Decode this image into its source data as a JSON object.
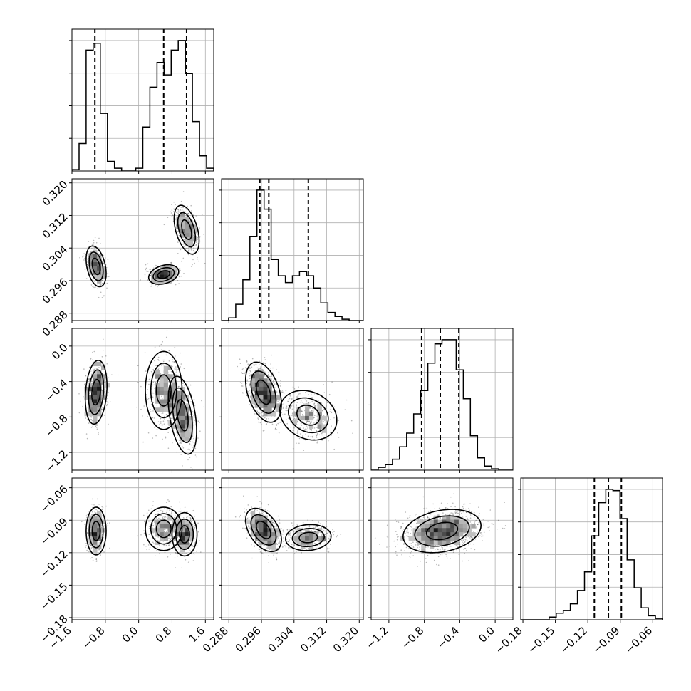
{
  "chart_data": {
    "type": "corner",
    "parameters": [
      {
        "ticks": [
          "−1.6",
          "−0.8",
          "0.0",
          "0.8",
          "1.6"
        ],
        "tick_values": [
          -1.6,
          -0.8,
          0.0,
          0.8,
          1.6
        ],
        "range": [
          -1.6,
          1.8
        ],
        "quantiles": [
          -1.05,
          0.6,
          1.15
        ]
      },
      {
        "ticks": [
          "0.288",
          "0.296",
          "0.304",
          "0.312",
          "0.320"
        ],
        "tick_values": [
          0.288,
          0.296,
          0.304,
          0.312,
          0.32
        ],
        "range": [
          0.2862,
          0.321
        ],
        "quantiles": [
          0.2956,
          0.2978,
          0.3075
        ]
      },
      {
        "ticks": [
          "−1.2",
          "−0.8",
          "−0.4",
          "0.0"
        ],
        "tick_values": [
          -1.2,
          -0.8,
          -0.4,
          0.0
        ],
        "range": [
          -1.4,
          0.2
        ],
        "quantiles": [
          -0.83,
          -0.62,
          -0.41
        ]
      },
      {
        "ticks": [
          "−0.18",
          "−0.15",
          "−0.12",
          "−0.09",
          "−0.06"
        ],
        "tick_values": [
          -0.18,
          -0.15,
          -0.12,
          -0.09,
          -0.06
        ],
        "range": [
          -0.182,
          -0.051
        ],
        "quantiles": [
          -0.114,
          -0.101,
          -0.089
        ]
      }
    ],
    "histograms": [
      {
        "edges": [
          -1.6,
          -1.43,
          -1.26,
          -1.09,
          -0.92,
          -0.75,
          -0.58,
          -0.41,
          -0.24,
          -0.07,
          0.1,
          0.27,
          0.44,
          0.61,
          0.78,
          0.95,
          1.12,
          1.29,
          1.46,
          1.63,
          1.8
        ],
        "counts": [
          1,
          20,
          88,
          93,
          42,
          7,
          2,
          0,
          0,
          2,
          32,
          61,
          79,
          70,
          88,
          95,
          71,
          36,
          11,
          2
        ]
      },
      {
        "edges": [
          0.2862,
          0.28794,
          0.28968,
          0.29142,
          0.29316,
          0.2949,
          0.29664,
          0.29838,
          0.30012,
          0.30186,
          0.3036,
          0.30534,
          0.30708,
          0.30882,
          0.31056,
          0.3123,
          0.31404,
          0.31578,
          0.31752,
          0.31926,
          0.321
        ],
        "counts": [
          0,
          2,
          12,
          30,
          62,
          96,
          82,
          45,
          33,
          28,
          33,
          36,
          33,
          24,
          13,
          6,
          3,
          1,
          0,
          0
        ]
      },
      {
        "edges": [
          -1.4,
          -1.32,
          -1.24,
          -1.16,
          -1.08,
          -1.0,
          -0.92,
          -0.84,
          -0.76,
          -0.68,
          -0.6,
          -0.52,
          -0.44,
          -0.36,
          -0.28,
          -0.2,
          -0.12,
          -0.04,
          0.04,
          0.12,
          0.2
        ],
        "counts": [
          0,
          2,
          4,
          8,
          17,
          27,
          41,
          58,
          78,
          92,
          95,
          95,
          73,
          52,
          25,
          9,
          3,
          1,
          0,
          0
        ]
      },
      {
        "edges": [
          -0.182,
          -0.17545,
          -0.1689,
          -0.16235,
          -0.1558,
          -0.14925,
          -0.1427,
          -0.13615,
          -0.1296,
          -0.12305,
          -0.1165,
          -0.10995,
          -0.1034,
          -0.09685,
          -0.0903,
          -0.08375,
          -0.0772,
          -0.07065,
          -0.0641,
          -0.05755,
          -0.051
        ],
        "counts": [
          0,
          0,
          0,
          0,
          2,
          5,
          7,
          12,
          22,
          36,
          63,
          88,
          98,
          97,
          76,
          45,
          24,
          9,
          3,
          1
        ]
      }
    ],
    "pairs": [
      {
        "x": 0,
        "y": 1,
        "modes": [
          {
            "cx": -1.02,
            "cy": 0.2995,
            "sx": 0.12,
            "sy": 0.0025,
            "rho": -0.35,
            "w": 0.34
          },
          {
            "cx": 0.6,
            "cy": 0.2975,
            "sx": 0.18,
            "sy": 0.0012,
            "rho": 0.3,
            "w": 0.3
          },
          {
            "cx": 1.15,
            "cy": 0.3085,
            "sx": 0.15,
            "sy": 0.003,
            "rho": -0.45,
            "w": 0.36
          }
        ]
      },
      {
        "x": 0,
        "y": 2,
        "modes": [
          {
            "cx": -1.02,
            "cy": -0.52,
            "sx": 0.13,
            "sy": 0.18,
            "rho": 0.2,
            "w": 0.34
          },
          {
            "cx": 0.6,
            "cy": -0.5,
            "sx": 0.22,
            "sy": 0.22,
            "rho": 0.0,
            "w": 0.34
          },
          {
            "cx": 1.05,
            "cy": -0.78,
            "sx": 0.17,
            "sy": 0.22,
            "rho": -0.4,
            "w": 0.32
          }
        ]
      },
      {
        "x": 0,
        "y": 3,
        "modes": [
          {
            "cx": -1.02,
            "cy": -0.1,
            "sx": 0.12,
            "sy": 0.011,
            "rho": 0.0,
            "w": 0.34
          },
          {
            "cx": 0.6,
            "cy": -0.098,
            "sx": 0.22,
            "sy": 0.01,
            "rho": 0.0,
            "w": 0.33
          },
          {
            "cx": 1.1,
            "cy": -0.103,
            "sx": 0.15,
            "sy": 0.01,
            "rho": 0.0,
            "w": 0.33
          }
        ]
      },
      {
        "x": 1,
        "y": 2,
        "modes": [
          {
            "cx": 0.2965,
            "cy": -0.52,
            "sx": 0.0022,
            "sy": 0.17,
            "rho": -0.4,
            "w": 0.62
          },
          {
            "cx": 0.3075,
            "cy": -0.78,
            "sx": 0.0035,
            "sy": 0.14,
            "rho": -0.2,
            "w": 0.38
          }
        ]
      },
      {
        "x": 1,
        "y": 3,
        "modes": [
          {
            "cx": 0.2965,
            "cy": -0.099,
            "sx": 0.0022,
            "sy": 0.01,
            "rho": -0.45,
            "w": 0.64
          },
          {
            "cx": 0.3075,
            "cy": -0.106,
            "sx": 0.0028,
            "sy": 0.006,
            "rho": 0.1,
            "w": 0.36
          }
        ]
      },
      {
        "x": 2,
        "y": 3,
        "modes": [
          {
            "cx": -0.6,
            "cy": -0.1,
            "sx": 0.22,
            "sy": 0.01,
            "rho": 0.25,
            "w": 1.0
          }
        ]
      }
    ]
  }
}
